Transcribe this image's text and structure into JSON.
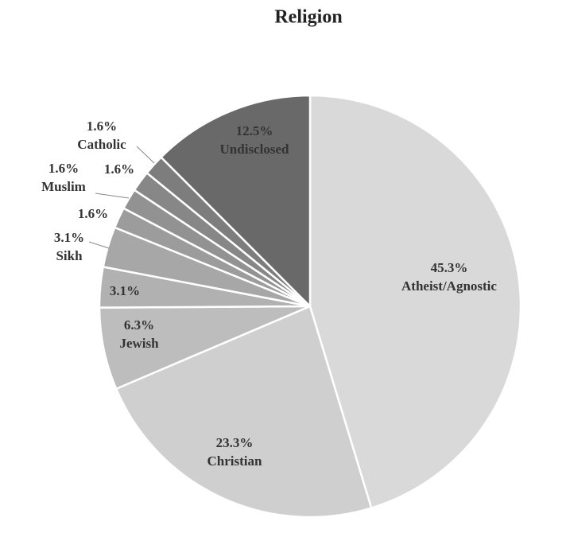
{
  "chart_data": {
    "type": "pie",
    "title": "Religion",
    "categories": [
      "Atheist/Agnostic",
      "Christian",
      "Jewish",
      null,
      "Sikh",
      null,
      "Muslim",
      null,
      "Catholic",
      "Undisclosed"
    ],
    "values": [
      45.3,
      23.3,
      6.3,
      3.1,
      3.1,
      1.6,
      1.6,
      1.6,
      1.6,
      12.5
    ],
    "value_labels": [
      "45.3%",
      "23.3%",
      "6.3%",
      "3.1%",
      "3.1%",
      "1.6%",
      "1.6%",
      "1.6%",
      "1.6%",
      "12.5%"
    ],
    "colors": [
      "#d9d9d9",
      "#cfcfcf",
      "#bdbdbd",
      "#b1b1b1",
      "#a7a7a7",
      "#9c9c9c",
      "#929292",
      "#878787",
      "#7d7d7d",
      "#696969"
    ]
  }
}
